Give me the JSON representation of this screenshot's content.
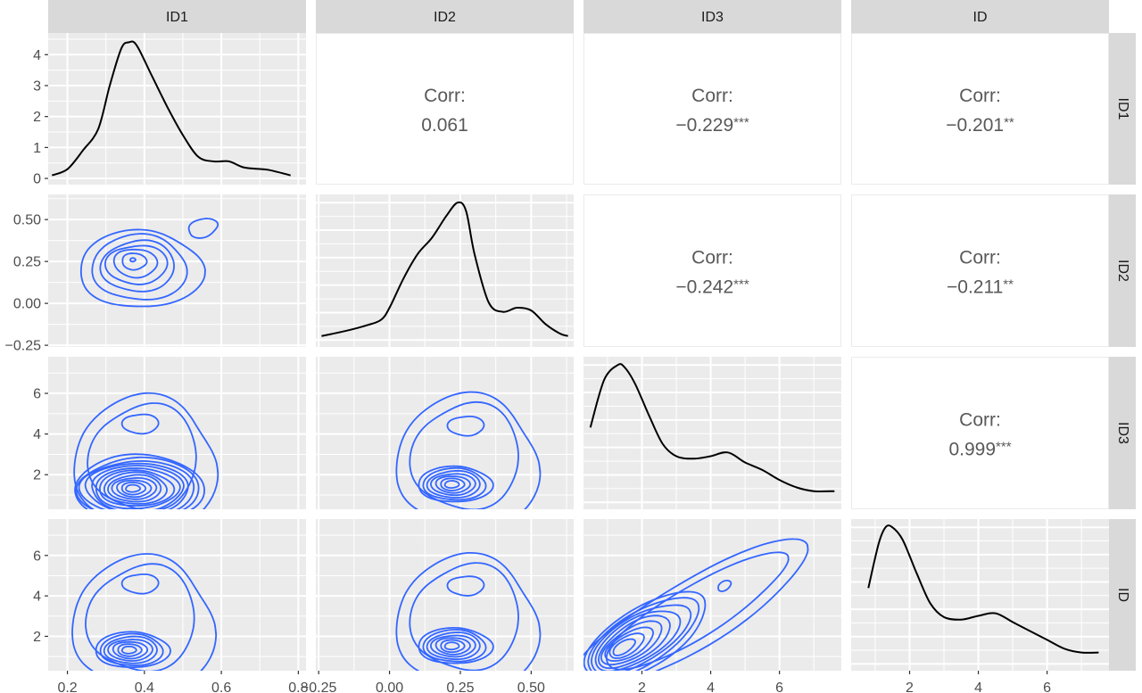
{
  "chart_data": {
    "type": "pairs",
    "title": "",
    "variables": [
      "ID1",
      "ID2",
      "ID3",
      "ID"
    ],
    "column_strips": [
      "ID1",
      "ID2",
      "ID3",
      "ID"
    ],
    "row_strips": [
      "ID1",
      "ID2",
      "ID3",
      "ID"
    ],
    "colors": {
      "panel_bg": "#ebebeb",
      "grid": "#ffffff",
      "strip_bg": "#d9d9d9",
      "density_line": "#000000",
      "contour_line": "#3366ff",
      "corr_text": "#595959"
    },
    "axes": {
      "ID1": {
        "range": [
          0.15,
          0.82
        ],
        "ticks": [
          0.2,
          0.4,
          0.6,
          0.8
        ],
        "tick_labels": [
          "0.2",
          "0.4",
          "0.6",
          "0.8"
        ]
      },
      "ID2": {
        "range": [
          -0.26,
          0.65
        ],
        "ticks": [
          -0.25,
          0.0,
          0.25,
          0.5
        ],
        "tick_labels": [
          "-0.25",
          "0.00",
          "0.25",
          "0.50"
        ]
      },
      "ID3": {
        "range": [
          0.3,
          7.8
        ],
        "ticks": [
          2,
          4,
          6
        ],
        "tick_labels": [
          "2",
          "4",
          "6"
        ]
      },
      "ID": {
        "range": [
          0.3,
          7.8
        ],
        "ticks": [
          2,
          4,
          6
        ],
        "tick_labels": [
          "2",
          "4",
          "6"
        ]
      }
    },
    "row1_density_y": {
      "range": [
        -0.2,
        4.7
      ],
      "ticks": [
        0,
        1,
        2,
        3,
        4
      ],
      "tick_labels": [
        "0",
        "1",
        "2",
        "3",
        "4"
      ]
    },
    "correlations": [
      {
        "row": "ID1",
        "col": "ID2",
        "label": "Corr:",
        "value": "0.061",
        "stars": ""
      },
      {
        "row": "ID1",
        "col": "ID3",
        "label": "Corr:",
        "value": "−0.229",
        "stars": "***"
      },
      {
        "row": "ID1",
        "col": "ID",
        "label": "Corr:",
        "value": "−0.201",
        "stars": "**"
      },
      {
        "row": "ID2",
        "col": "ID3",
        "label": "Corr:",
        "value": "−0.242",
        "stars": "***"
      },
      {
        "row": "ID2",
        "col": "ID",
        "label": "Corr:",
        "value": "−0.211",
        "stars": "**"
      },
      {
        "row": "ID3",
        "col": "ID",
        "label": "Corr:",
        "value": "0.999",
        "stars": "***"
      }
    ],
    "diagonal_densities": {
      "ID1": {
        "x": [
          0.16,
          0.2,
          0.24,
          0.28,
          0.31,
          0.34,
          0.36,
          0.38,
          0.42,
          0.46,
          0.5,
          0.54,
          0.58,
          0.62,
          0.66,
          0.72,
          0.78
        ],
        "y": [
          0.1,
          0.3,
          0.9,
          1.6,
          3.0,
          4.2,
          4.4,
          4.3,
          3.3,
          2.3,
          1.4,
          0.7,
          0.55,
          0.55,
          0.35,
          0.28,
          0.1
        ]
      },
      "ID2": {
        "x": [
          -0.24,
          -0.15,
          -0.08,
          -0.03,
          0.0,
          0.05,
          0.1,
          0.15,
          0.2,
          0.24,
          0.27,
          0.3,
          0.35,
          0.4,
          0.45,
          0.5,
          0.55,
          0.6,
          0.63
        ],
        "y": [
          0.15,
          0.35,
          0.55,
          0.75,
          1.2,
          2.3,
          3.2,
          3.8,
          4.6,
          5.1,
          4.8,
          3.2,
          1.4,
          1.05,
          1.2,
          1.1,
          0.6,
          0.25,
          0.15
        ]
      },
      "ID3": {
        "x": [
          0.5,
          0.9,
          1.3,
          1.5,
          1.8,
          2.2,
          2.6,
          3.0,
          3.5,
          4.0,
          4.5,
          5.0,
          5.5,
          6.0,
          6.5,
          7.0,
          7.6
        ],
        "y": [
          0.6,
          0.98,
          1.1,
          1.08,
          0.95,
          0.7,
          0.47,
          0.37,
          0.35,
          0.37,
          0.4,
          0.32,
          0.26,
          0.18,
          0.12,
          0.09,
          0.09
        ]
      },
      "ID": {
        "x": [
          0.8,
          1.1,
          1.3,
          1.5,
          1.8,
          2.2,
          2.6,
          3.0,
          3.5,
          4.0,
          4.5,
          5.0,
          5.5,
          6.0,
          6.5,
          7.0,
          7.5
        ],
        "y": [
          0.6,
          0.95,
          1.08,
          1.08,
          0.98,
          0.72,
          0.48,
          0.37,
          0.35,
          0.38,
          0.4,
          0.33,
          0.26,
          0.19,
          0.12,
          0.09,
          0.09
        ]
      }
    },
    "contour_modes": [
      {
        "row": "ID2",
        "col": "ID1",
        "modes": [
          [
            0.37,
            0.26
          ]
        ]
      },
      {
        "row": "ID3",
        "col": "ID1",
        "modes": [
          [
            0.37,
            1.5
          ],
          [
            0.39,
            4.5
          ]
        ]
      },
      {
        "row": "ID3",
        "col": "ID2",
        "modes": [
          [
            0.22,
            1.7
          ],
          [
            0.27,
            4.4
          ]
        ]
      },
      {
        "row": "ID",
        "col": "ID1",
        "modes": [
          [
            0.36,
            1.5
          ],
          [
            0.39,
            4.6
          ]
        ]
      },
      {
        "row": "ID",
        "col": "ID2",
        "modes": [
          [
            0.22,
            1.7
          ],
          [
            0.27,
            4.5
          ]
        ]
      },
      {
        "row": "ID",
        "col": "ID3",
        "modes": [
          [
            1.4,
            1.4
          ],
          [
            4.4,
            4.5
          ]
        ]
      }
    ],
    "grid": true,
    "legend": "none"
  }
}
